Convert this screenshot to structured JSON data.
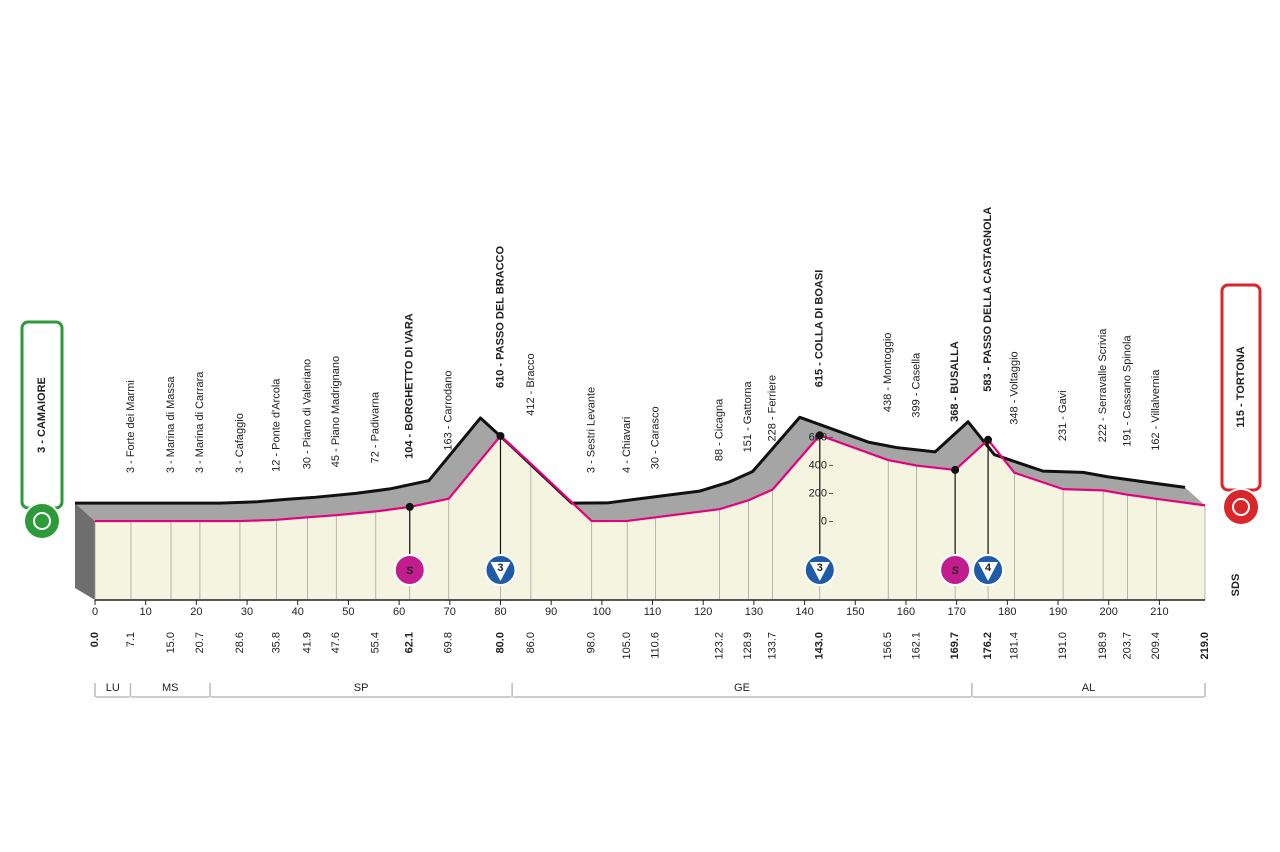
{
  "chart_data": {
    "type": "profile",
    "x": [
      0,
      7.1,
      15,
      20.7,
      28.6,
      35.8,
      41.9,
      47.6,
      55.4,
      62.1,
      69.8,
      80,
      86,
      98,
      105,
      110.6,
      123.2,
      128.9,
      133.7,
      143,
      156.5,
      162.1,
      169.7,
      176.2,
      181.4,
      191,
      198.9,
      203.7,
      209.4,
      219
    ],
    "x_labels": [
      "0.0",
      "7.1",
      "15.0",
      "20.7",
      "28.6",
      "35.8",
      "41.9",
      "47.6",
      "55.4",
      "62.1",
      "69.8",
      "80.0",
      "86.0",
      "98.0",
      "105.0",
      "110.6",
      "123.2",
      "128.9",
      "133.7",
      "143.0",
      "156.5",
      "162.1",
      "169.7",
      "176.2",
      "181.4",
      "191.0",
      "198.9",
      "203.7",
      "209.4",
      "219.0"
    ],
    "values": [
      3,
      3,
      3,
      3,
      3,
      12,
      30,
      45,
      72,
      104,
      163,
      610,
      412,
      3,
      4,
      30,
      88,
      151,
      228,
      615,
      438,
      399,
      368,
      583,
      348,
      231,
      222,
      191,
      162,
      115
    ],
    "labels": [
      "3 - CAMAIORE",
      "3 - Forte dei Marmi",
      "3 - Marina di Massa",
      "3 - Marina di Carrara",
      "3 - Cafaggio",
      "12 - Ponte d'Arcola",
      "30 - Piano di Valeriano",
      "45 - Piano Madrignano",
      "72 - Padivarna",
      "104 - BORGHETTO DI VARA",
      "163 - Carrodano",
      "610 - PASSO DEL BRACCO",
      "412 - Bracco",
      "3 - Sestri Levante",
      "4 - Chiavari",
      "30 - Carasco",
      "88 - Cicagna",
      "151 - Gattorna",
      "228 - Ferriere",
      "615 - COLLA DI BOASI",
      "438 - Montoggio",
      "399 - Casella",
      "368 - BUSALLA",
      "583 - PASSO DELLA CASTAGNOLA",
      "348 - Voltaggio",
      "231 - Gavi",
      "222 - Serravalle Scrivia",
      "191 - Cassano Spinola",
      "162 - Villalvernia",
      "115 - TORTONA"
    ],
    "bold": [
      true,
      false,
      false,
      false,
      false,
      false,
      false,
      false,
      false,
      true,
      false,
      true,
      false,
      false,
      false,
      false,
      false,
      false,
      false,
      true,
      false,
      false,
      true,
      true,
      false,
      false,
      false,
      false,
      false,
      true
    ],
    "color": "#e5007e",
    "xlim": [
      0,
      219
    ],
    "xticks": [
      0,
      10,
      20,
      30,
      40,
      50,
      60,
      70,
      80,
      90,
      100,
      110,
      120,
      130,
      140,
      150,
      160,
      170,
      180,
      190,
      200,
      210
    ],
    "ylim": [
      -560,
      2650
    ],
    "yticks": [
      0,
      200,
      400,
      600
    ],
    "sprints": {
      "x": [
        62.1,
        169.7
      ],
      "label": "S",
      "color": "#c21d8e"
    },
    "climbs": {
      "x": [
        80,
        143,
        176.2
      ],
      "labels": [
        "3",
        "3",
        "4"
      ],
      "color": "#1f5ba8"
    },
    "regions": {
      "names": [
        "LU",
        "MS",
        "SP",
        "GE",
        "AL"
      ],
      "bounds": [
        0,
        7,
        22.7,
        82.3,
        173,
        219
      ]
    },
    "brand": "SDS"
  }
}
